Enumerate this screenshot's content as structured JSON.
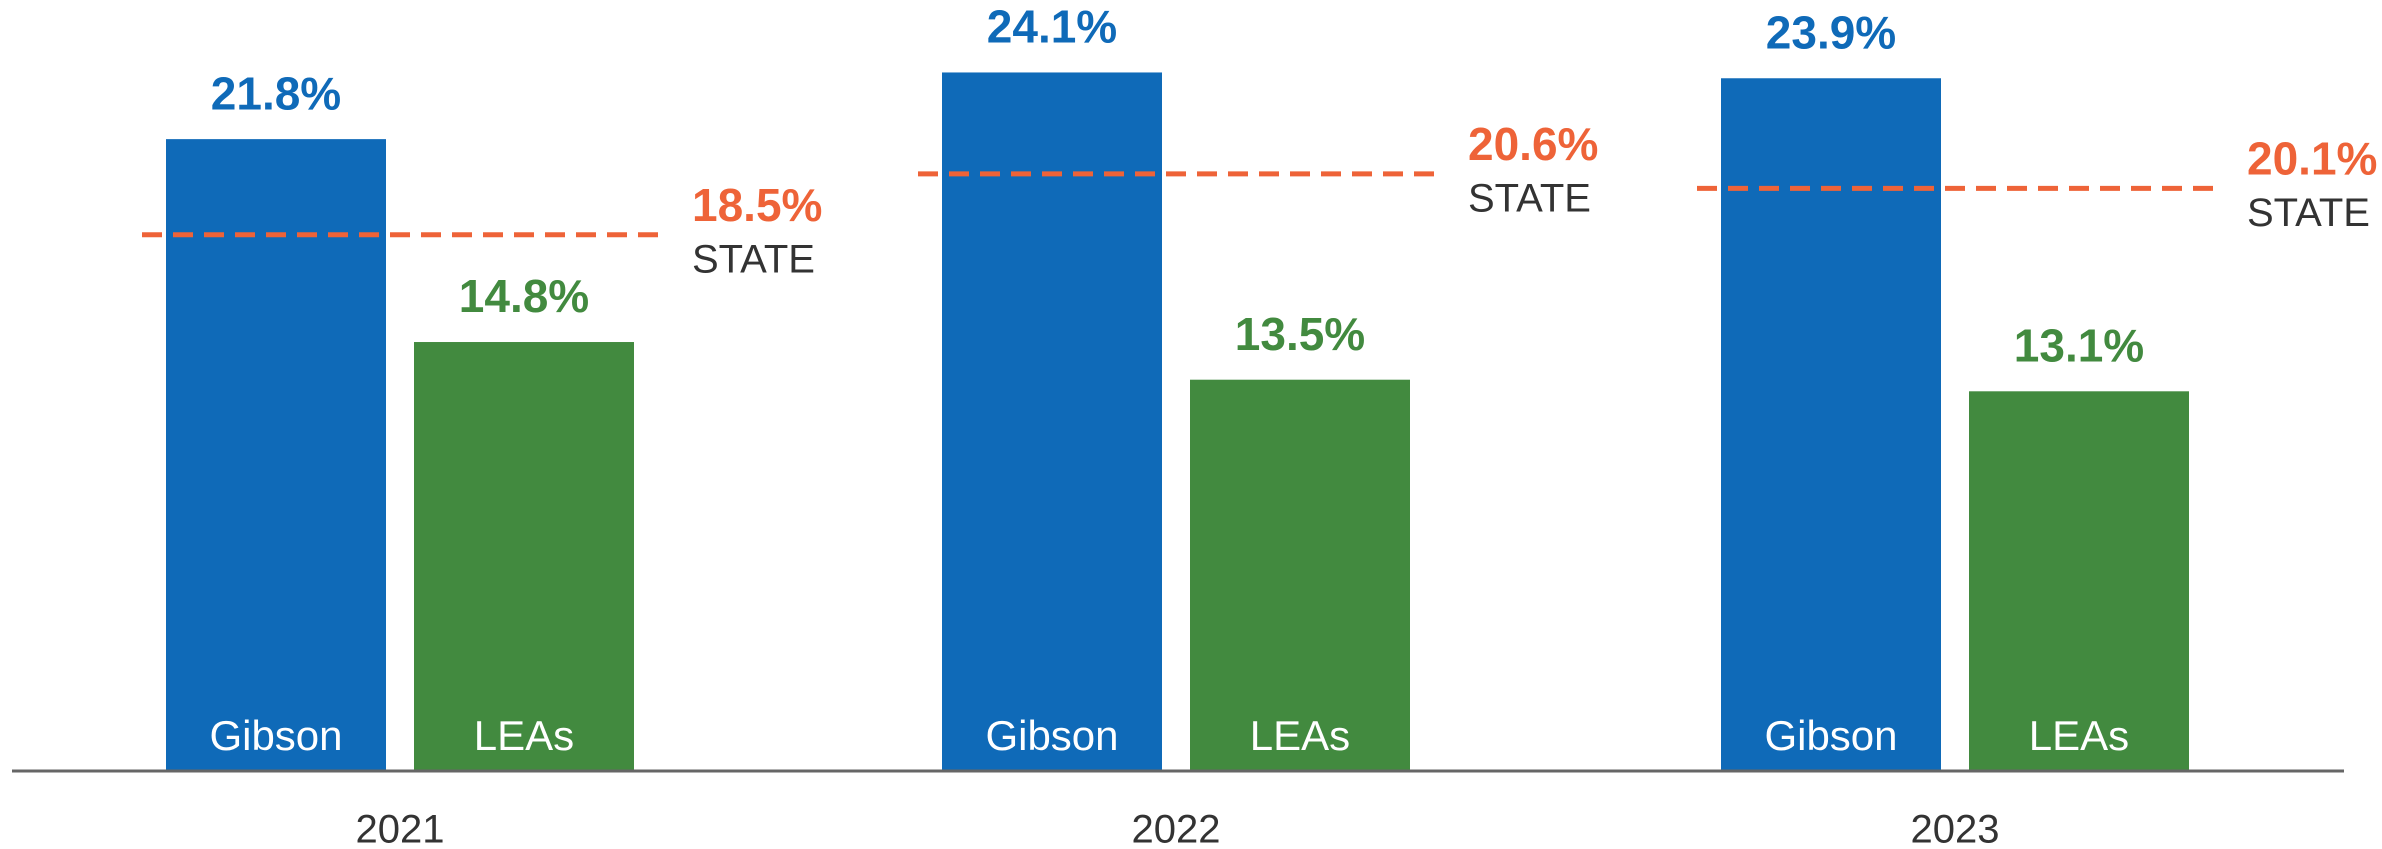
{
  "chart_data": {
    "type": "bar",
    "categories": [
      "2021",
      "2022",
      "2023"
    ],
    "series": [
      {
        "name": "Gibson",
        "color": "#0f6ab8",
        "values": [
          21.8,
          24.1,
          23.9
        ],
        "value_labels": [
          "21.8%",
          "24.1%",
          "23.9%"
        ]
      },
      {
        "name": "LEAs",
        "color": "#428a3f",
        "values": [
          14.8,
          13.5,
          13.1
        ],
        "value_labels": [
          "14.8%",
          "13.5%",
          "13.1%"
        ]
      }
    ],
    "reference": {
      "name": "STATE",
      "color": "#ee6338",
      "values": [
        18.5,
        20.6,
        20.1
      ],
      "value_labels": [
        "18.5%",
        "20.6%",
        "20.1%"
      ]
    },
    "ylim": [
      0,
      26.6
    ]
  }
}
